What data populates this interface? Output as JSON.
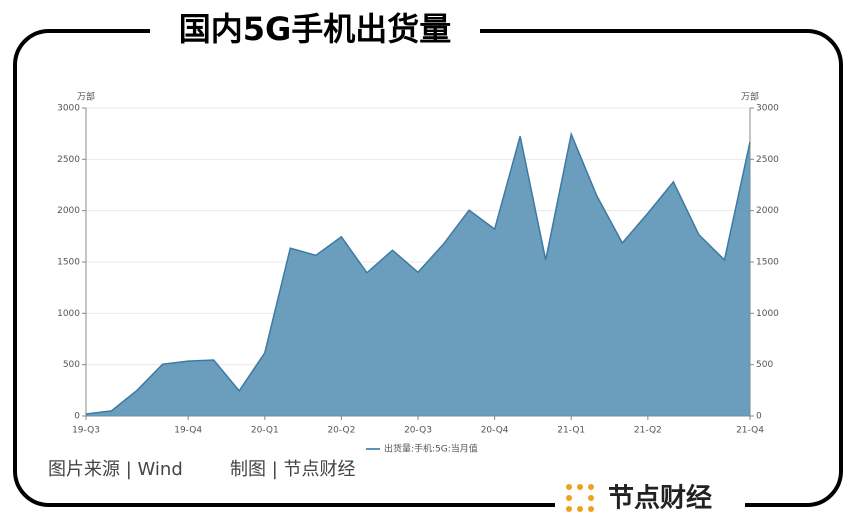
{
  "chart_data": {
    "type": "area",
    "title": "国内5G手机出货量",
    "y_unit": "万部",
    "y2_unit": "万部",
    "categories": [
      "19-Q3",
      null,
      null,
      null,
      "19-Q4",
      null,
      null,
      "20-Q1",
      null,
      null,
      "20-Q2",
      null,
      null,
      "20-Q3",
      null,
      null,
      "20-Q4",
      null,
      null,
      "21-Q1",
      null,
      null,
      "21-Q2",
      null,
      null,
      null,
      "21-Q4"
    ],
    "series": [
      {
        "name": "出货量:手机:5G:当月值",
        "color": "#5b93b5",
        "values": [
          20,
          50,
          250,
          505,
          535,
          545,
          245,
          615,
          1635,
          1565,
          1745,
          1395,
          1615,
          1400,
          1675,
          2005,
          1820,
          2725,
          1520,
          2745,
          2145,
          1685,
          1975,
          2280,
          1765,
          1520,
          2670
        ]
      }
    ],
    "ylim": [
      0,
      3000
    ],
    "yticks": [
      0,
      500,
      1000,
      1500,
      2000,
      2500,
      3000
    ],
    "y2lim": [
      0,
      3000
    ],
    "y2ticks": [
      0,
      500,
      1000,
      1500,
      2000,
      2500,
      3000
    ],
    "grid": true,
    "source": "图片来源 | Wind",
    "credit": "制图 | 节点财经",
    "brand": "节点财经"
  }
}
